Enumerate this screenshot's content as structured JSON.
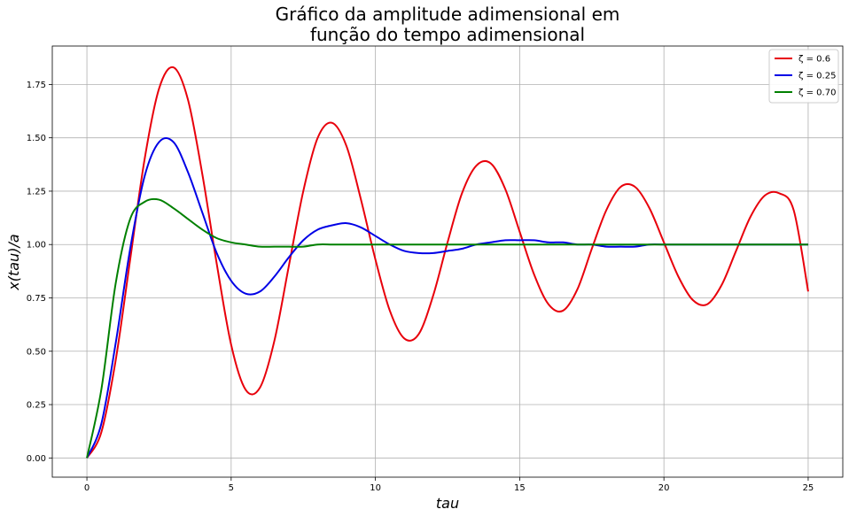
{
  "chart_data": {
    "type": "line",
    "title_lines": [
      "Gráfico da amplitude adimensional em",
      "função do tempo adimensional"
    ],
    "xlabel": "tau",
    "ylabel": "x(tau)/a",
    "xlim": [
      -1.2,
      26.2
    ],
    "ylim": [
      -0.09,
      1.93
    ],
    "xticks": [
      0,
      5,
      10,
      15,
      20,
      25
    ],
    "xtick_labels": [
      "0",
      "5",
      "10",
      "15",
      "20",
      "25"
    ],
    "yticks": [
      0.0,
      0.25,
      0.5,
      0.75,
      1.0,
      1.25,
      1.5,
      1.75
    ],
    "ytick_labels": [
      "0.00",
      "0.25",
      "0.50",
      "0.75",
      "1.00",
      "1.25",
      "1.50",
      "1.75"
    ],
    "grid": true,
    "legend_position": "top-right",
    "x": [
      0,
      0.5,
      1,
      1.5,
      2,
      2.5,
      3,
      3.5,
      4,
      4.5,
      5,
      5.5,
      6,
      6.5,
      7,
      7.5,
      8,
      8.5,
      9,
      9.5,
      10,
      10.5,
      11,
      11.5,
      12,
      12.5,
      13,
      13.5,
      14,
      14.5,
      15,
      15.5,
      16,
      16.5,
      17,
      17.5,
      18,
      18.5,
      19,
      19.5,
      20,
      20.5,
      21,
      21.5,
      22,
      22.5,
      23,
      23.5,
      24,
      24.5,
      25
    ],
    "series": [
      {
        "name": "ζ = 0.6",
        "color": "#e8000b",
        "values": [
          0.0,
          0.12,
          0.46,
          0.93,
          1.4,
          1.73,
          1.83,
          1.68,
          1.33,
          0.91,
          0.53,
          0.32,
          0.33,
          0.55,
          0.9,
          1.25,
          1.5,
          1.57,
          1.46,
          1.21,
          0.93,
          0.69,
          0.56,
          0.58,
          0.76,
          1.01,
          1.24,
          1.37,
          1.38,
          1.26,
          1.06,
          0.86,
          0.72,
          0.69,
          0.79,
          0.98,
          1.16,
          1.27,
          1.27,
          1.17,
          1.01,
          0.85,
          0.74,
          0.72,
          0.81,
          0.97,
          1.13,
          1.23,
          1.24,
          1.16,
          0.78
        ]
      },
      {
        "name": "ζ = 0.25",
        "color": "#0000e6",
        "values": [
          0.0,
          0.16,
          0.54,
          0.98,
          1.32,
          1.48,
          1.48,
          1.34,
          1.15,
          0.96,
          0.83,
          0.77,
          0.78,
          0.85,
          0.94,
          1.02,
          1.07,
          1.09,
          1.1,
          1.08,
          1.04,
          1.0,
          0.97,
          0.96,
          0.96,
          0.97,
          0.98,
          1.0,
          1.01,
          1.02,
          1.02,
          1.02,
          1.01,
          1.01,
          1.0,
          1.0,
          0.99,
          0.99,
          0.99,
          1.0,
          1.0,
          1.0,
          1.0,
          1.0,
          1.0,
          1.0,
          1.0,
          1.0,
          1.0,
          1.0,
          1.0
        ]
      },
      {
        "name": "ζ = 0.70",
        "color": "#008000",
        "values": [
          0.0,
          0.32,
          0.82,
          1.12,
          1.2,
          1.21,
          1.17,
          1.12,
          1.07,
          1.03,
          1.01,
          1.0,
          0.99,
          0.99,
          0.99,
          0.99,
          1.0,
          1.0,
          1.0,
          1.0,
          1.0,
          1.0,
          1.0,
          1.0,
          1.0,
          1.0,
          1.0,
          1.0,
          1.0,
          1.0,
          1.0,
          1.0,
          1.0,
          1.0,
          1.0,
          1.0,
          1.0,
          1.0,
          1.0,
          1.0,
          1.0,
          1.0,
          1.0,
          1.0,
          1.0,
          1.0,
          1.0,
          1.0,
          1.0,
          1.0,
          1.0
        ]
      }
    ]
  }
}
